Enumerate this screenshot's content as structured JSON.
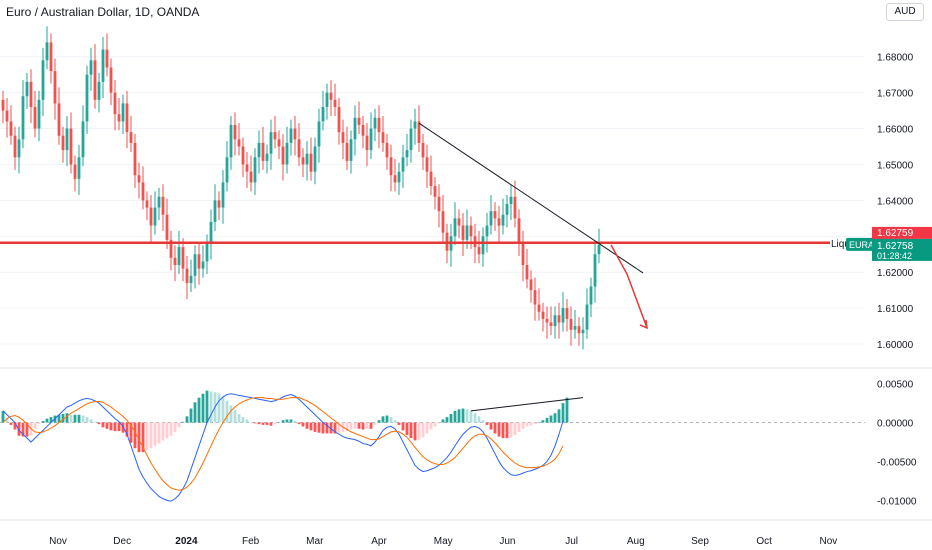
{
  "header": {
    "title": "Euro / Australian Dollar, 1D, OANDA",
    "currency_button": "AUD"
  },
  "chart_data": [
    {
      "type": "candlestick",
      "symbol": "EURAUD",
      "price_axis": {
        "ticks": [
          1.6,
          1.61,
          1.62,
          1.63,
          1.64,
          1.65,
          1.66,
          1.67,
          1.68
        ],
        "tick_labels": [
          "1.60000",
          "1.61000",
          "1.62000",
          "1.63000",
          "1.64000",
          "1.65000",
          "1.66000",
          "1.67000",
          "1.68000"
        ]
      },
      "time_axis": {
        "labels": [
          "Nov",
          "Dec",
          "2024",
          "Feb",
          "Mar",
          "Apr",
          "May",
          "Jun",
          "Jul",
          "Aug",
          "Sep",
          "Oct",
          "Nov"
        ]
      },
      "closes": [
        1.665,
        1.662,
        1.658,
        1.652,
        1.657,
        1.669,
        1.673,
        1.666,
        1.66,
        1.668,
        1.679,
        1.684,
        1.676,
        1.667,
        1.658,
        1.654,
        1.66,
        1.65,
        1.646,
        1.652,
        1.662,
        1.675,
        1.679,
        1.668,
        1.673,
        1.682,
        1.677,
        1.67,
        1.664,
        1.662,
        1.667,
        1.659,
        1.656,
        1.647,
        1.645,
        1.64,
        1.638,
        1.633,
        1.638,
        1.641,
        1.636,
        1.629,
        1.624,
        1.622,
        1.627,
        1.621,
        1.617,
        1.619,
        1.625,
        1.621,
        1.623,
        1.628,
        1.634,
        1.64,
        1.638,
        1.645,
        1.652,
        1.661,
        1.657,
        1.655,
        1.65,
        1.648,
        1.645,
        1.652,
        1.656,
        1.651,
        1.653,
        1.659,
        1.657,
        1.655,
        1.65,
        1.656,
        1.66,
        1.657,
        1.652,
        1.65,
        1.653,
        1.648,
        1.655,
        1.662,
        1.666,
        1.67,
        1.668,
        1.666,
        1.659,
        1.656,
        1.651,
        1.657,
        1.663,
        1.661,
        1.658,
        1.654,
        1.66,
        1.663,
        1.659,
        1.656,
        1.652,
        1.647,
        1.645,
        1.648,
        1.652,
        1.654,
        1.66,
        1.662,
        1.656,
        1.652,
        1.648,
        1.644,
        1.641,
        1.637,
        1.631,
        1.626,
        1.63,
        1.635,
        1.633,
        1.629,
        1.633,
        1.63,
        1.627,
        1.625,
        1.63,
        1.633,
        1.637,
        1.635,
        1.633,
        1.636,
        1.639,
        1.641,
        1.635,
        1.628,
        1.622,
        1.618,
        1.615,
        1.611,
        1.609,
        1.607,
        1.606,
        1.605,
        1.608,
        1.606,
        1.61,
        1.607,
        1.604,
        1.605,
        1.603,
        1.604,
        1.611,
        1.616,
        1.625,
        1.6276
      ],
      "current_price": {
        "label": "EURAUD",
        "value": "1.62758",
        "countdown": "01:28:42",
        "prev_value": "1.62759"
      },
      "horizontal_line": {
        "value": 1.6282,
        "label": "Liqui"
      },
      "trendline": {
        "from": {
          "index": 104,
          "price": 1.6615
        },
        "to": {
          "index": 160,
          "price": 1.6198
        }
      },
      "projection_arrow": {
        "points": [
          [
            152,
            1.6276
          ],
          [
            156,
            1.6195
          ],
          [
            161,
            1.6045
          ]
        ]
      }
    },
    {
      "type": "macd",
      "axis": {
        "ticks": [
          0.005,
          0.0,
          -0.005,
          -0.01
        ],
        "tick_labels": [
          "0.00500",
          "0.00000",
          "-0.00500",
          "-0.01000"
        ]
      },
      "macd": [
        0.0015,
        0.001,
        0.0005,
        0.0,
        -0.001,
        -0.0015,
        -0.002,
        -0.0025,
        -0.002,
        -0.0015,
        -0.001,
        -0.0005,
        0.0,
        0.0005,
        0.001,
        0.0015,
        0.002,
        0.0022,
        0.0025,
        0.0028,
        0.003,
        0.0031,
        0.003,
        0.0028,
        0.0025,
        0.002,
        0.0015,
        0.001,
        0.0005,
        0.0001,
        -0.0005,
        -0.0015,
        -0.003,
        -0.0045,
        -0.006,
        -0.007,
        -0.0078,
        -0.0085,
        -0.009,
        -0.0095,
        -0.0098,
        -0.01,
        -0.0101,
        -0.0098,
        -0.0093,
        -0.0085,
        -0.0075,
        -0.006,
        -0.0045,
        -0.003,
        -0.0015,
        0.0,
        0.001,
        0.002,
        0.0028,
        0.0033,
        0.0036,
        0.0037,
        0.0036,
        0.0035,
        0.0034,
        0.0033,
        0.0032,
        0.0031,
        0.003,
        0.0029,
        0.0028,
        0.0027,
        0.0028,
        0.003,
        0.0033,
        0.0035,
        0.0036,
        0.0034,
        0.003,
        0.0025,
        0.002,
        0.0015,
        0.001,
        0.0005,
        0.0,
        -0.0004,
        -0.0008,
        -0.0012,
        -0.0015,
        -0.0018,
        -0.002,
        -0.0021,
        -0.0022,
        -0.0024,
        -0.0027,
        -0.0028,
        -0.003,
        -0.0025,
        -0.0018,
        -0.001,
        -0.0006,
        -0.0005,
        -0.0008,
        -0.0015,
        -0.0025,
        -0.0035,
        -0.0045,
        -0.0055,
        -0.006,
        -0.0063,
        -0.0062,
        -0.006,
        -0.0058,
        -0.0055,
        -0.005,
        -0.0045,
        -0.0038,
        -0.003,
        -0.0022,
        -0.0015,
        -0.001,
        -0.0006,
        -0.0005,
        -0.0007,
        -0.0012,
        -0.002,
        -0.003,
        -0.004,
        -0.005,
        -0.0058,
        -0.0063,
        -0.0067,
        -0.0068,
        -0.0067,
        -0.0065,
        -0.0063,
        -0.0062,
        -0.006,
        -0.0058,
        -0.0055,
        -0.005,
        -0.0042,
        -0.003,
        -0.0015,
        0.0002
      ],
      "signal": [
        0.0,
        0.0005,
        0.0008,
        0.0009,
        0.0007,
        0.0003,
        -0.0002,
        -0.0008,
        -0.0012,
        -0.0013,
        -0.0012,
        -0.001,
        -0.0007,
        -0.0004,
        0.0,
        0.0004,
        0.0008,
        0.0012,
        0.0015,
        0.0018,
        0.0021,
        0.0024,
        0.0026,
        0.0027,
        0.0027,
        0.0026,
        0.0023,
        0.002,
        0.0016,
        0.0012,
        0.0008,
        0.0003,
        -0.0004,
        -0.0012,
        -0.0022,
        -0.0032,
        -0.0042,
        -0.0052,
        -0.006,
        -0.0068,
        -0.0075,
        -0.008,
        -0.0084,
        -0.0086,
        -0.0087,
        -0.0086,
        -0.0083,
        -0.0078,
        -0.0071,
        -0.0062,
        -0.0052,
        -0.0041,
        -0.003,
        -0.0019,
        -0.0009,
        0.0,
        0.0008,
        0.0015,
        0.002,
        0.0024,
        0.0027,
        0.0029,
        0.0031,
        0.0032,
        0.0032,
        0.0032,
        0.0031,
        0.0031,
        0.003,
        0.003,
        0.003,
        0.0031,
        0.0032,
        0.0032,
        0.0032,
        0.003,
        0.0028,
        0.0025,
        0.0022,
        0.0018,
        0.0014,
        0.001,
        0.0006,
        0.0002,
        -0.0002,
        -0.0006,
        -0.0009,
        -0.0012,
        -0.0014,
        -0.0016,
        -0.0018,
        -0.002,
        -0.0022,
        -0.0022,
        -0.0021,
        -0.0018,
        -0.0015,
        -0.0012,
        -0.0011,
        -0.0012,
        -0.0015,
        -0.0019,
        -0.0025,
        -0.0032,
        -0.0038,
        -0.0044,
        -0.0048,
        -0.0051,
        -0.0053,
        -0.0054,
        -0.0054,
        -0.0052,
        -0.0049,
        -0.0045,
        -0.0039,
        -0.0033,
        -0.0027,
        -0.0021,
        -0.0017,
        -0.0015,
        -0.0015,
        -0.0017,
        -0.0021,
        -0.0026,
        -0.0032,
        -0.0038,
        -0.0043,
        -0.0048,
        -0.0052,
        -0.0055,
        -0.0057,
        -0.0058,
        -0.0058,
        -0.0058,
        -0.0057,
        -0.0056,
        -0.0054,
        -0.0051,
        -0.0047,
        -0.004,
        -0.003
      ],
      "histogram": [
        0.0015,
        0.0005,
        -0.0003,
        -0.0009,
        -0.0017,
        -0.0018,
        -0.0018,
        -0.0017,
        -0.0008,
        -0.0002,
        0.0002,
        0.0005,
        0.0007,
        0.0009,
        0.001,
        0.0011,
        0.0012,
        0.001,
        0.001,
        0.001,
        0.0009,
        0.0007,
        0.0004,
        0.0001,
        -0.0002,
        -0.0006,
        -0.0008,
        -0.001,
        -0.0011,
        -0.0011,
        -0.0013,
        -0.0018,
        -0.0026,
        -0.0033,
        -0.0038,
        -0.0038,
        -0.0036,
        -0.0033,
        -0.003,
        -0.0027,
        -0.0023,
        -0.002,
        -0.0017,
        -0.0012,
        -0.0006,
        0.0001,
        0.0008,
        0.0018,
        0.0026,
        0.0032,
        0.0037,
        0.0041,
        0.004,
        0.0039,
        0.0037,
        0.0033,
        0.0028,
        0.0022,
        0.0016,
        0.0011,
        0.0007,
        0.0004,
        0.0001,
        -0.0001,
        -0.0002,
        -0.0003,
        -0.0003,
        -0.0004,
        -0.0002,
        0.0,
        0.0003,
        0.0004,
        0.0004,
        0.0002,
        -0.0002,
        -0.0005,
        -0.0008,
        -0.001,
        -0.0012,
        -0.0013,
        -0.0014,
        -0.0014,
        -0.0014,
        -0.0014,
        -0.0013,
        -0.0012,
        -0.0011,
        -0.0009,
        -0.0008,
        -0.0008,
        -0.0009,
        -0.0008,
        -0.0008,
        -0.0003,
        0.0003,
        0.0008,
        0.0009,
        0.0007,
        0.0003,
        -0.0003,
        -0.001,
        -0.0016,
        -0.002,
        -0.0023,
        -0.0022,
        -0.0019,
        -0.0014,
        -0.0009,
        -0.0005,
        -0.0001,
        0.0004,
        0.0007,
        0.0011,
        0.0015,
        0.0017,
        0.0018,
        0.0017,
        0.0015,
        0.0012,
        0.0008,
        0.0003,
        -0.0003,
        -0.0009,
        -0.0014,
        -0.0018,
        -0.002,
        -0.002,
        -0.0019,
        -0.0016,
        -0.0012,
        -0.0008,
        -0.0005,
        -0.0004,
        -0.0002,
        0.0,
        0.0003,
        0.0006,
        0.0009,
        0.0012,
        0.0017,
        0.0025,
        0.0032
      ],
      "divergence_line": {
        "from": {
          "index": 117,
          "value": 0.0015
        },
        "to": {
          "index": 145,
          "value": 0.0032
        }
      }
    }
  ],
  "colors": {
    "up": "#26a69a",
    "down": "#ef5350",
    "macd_line": "#2962ff",
    "signal_line": "#ff6d00",
    "hline": "#e53935",
    "grid": "#f0f3fa",
    "axis_text": "#131722",
    "price_label_bg": "#089981",
    "prev_label_bg": "#f23645"
  }
}
